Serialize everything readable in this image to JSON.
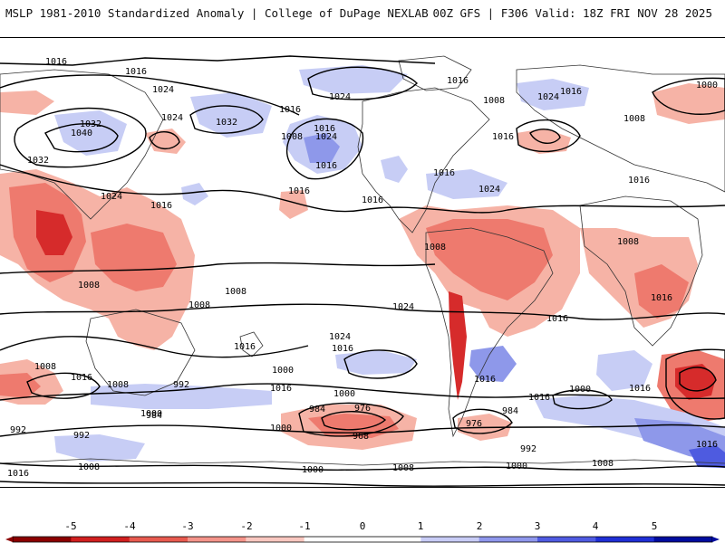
{
  "header": {
    "title_left": "MSLP 1981-2010 Standardized Anomaly | College of DuPage NEXLAB",
    "title_right": "00Z GFS | F306 Valid: 18Z FRI NOV 28 2025"
  },
  "map": {
    "contour_labels": [
      "1016",
      "1016",
      "1024",
      "1032",
      "1040",
      "1032",
      "1024",
      "1016",
      "1024",
      "1032",
      "1016",
      "1024",
      "1008",
      "1016",
      "1024",
      "1016",
      "1016",
      "1016",
      "1016",
      "1008",
      "1024",
      "1016",
      "1016",
      "1000",
      "1008",
      "1016",
      "1024",
      "1016",
      "1008",
      "1008",
      "1008",
      "1008",
      "1008",
      "1016",
      "1024",
      "1016",
      "1016",
      "1016",
      "1008",
      "1016",
      "1008",
      "992",
      "1000",
      "1016",
      "1016",
      "1000",
      "1016",
      "1000",
      "992",
      "984",
      "976",
      "968",
      "984",
      "976",
      "984",
      "992",
      "1000",
      "1000",
      "1016",
      "1024",
      "1008",
      "1008",
      "1000",
      "992",
      "1016",
      "1000",
      "1008",
      "1016"
    ],
    "anomaly_colors": {
      "strong_positive_red": "#d62b2b",
      "moderate_red": "#ee7a6e",
      "light_red": "#f6b3a6",
      "light_blue": "#c7cdf5",
      "moderate_blue": "#8e98ea",
      "strong_blue": "#4e5be0"
    }
  },
  "colorbar": {
    "ticks": [
      "-5",
      "-4",
      "-3",
      "-2",
      "-1",
      "0",
      "1",
      "2",
      "3",
      "4",
      "5"
    ],
    "colors": [
      "#8b0000",
      "#d11f1f",
      "#e85a4f",
      "#f4948a",
      "#f9c7c0",
      "#ffffff",
      "#ffffff",
      "#c8ccf6",
      "#8f97ec",
      "#4f5be2",
      "#1f2fd6",
      "#000c9e"
    ]
  }
}
